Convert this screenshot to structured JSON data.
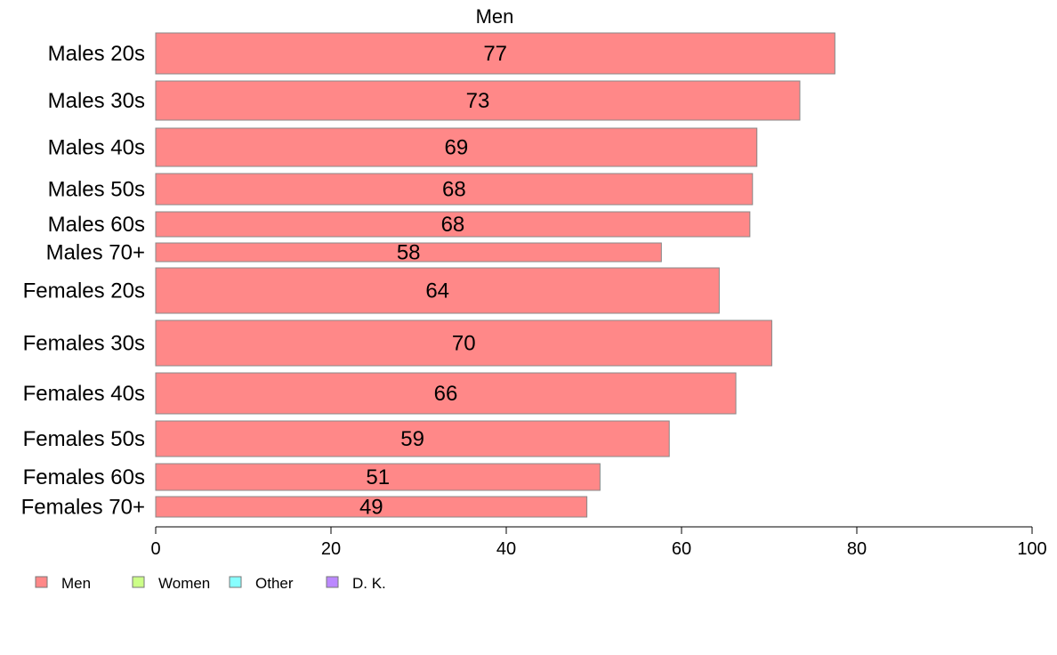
{
  "chart_data": {
    "type": "bar",
    "orientation": "horizontal",
    "title": "Men",
    "categories": [
      "Males 20s",
      "Males 30s",
      "Males 40s",
      "Males 50s",
      "Males 60s",
      "Males 70+",
      "Females 20s",
      "Females 30s",
      "Females 40s",
      "Females 50s",
      "Females 60s",
      "Females 70+"
    ],
    "series": [
      {
        "name": "Men",
        "values": [
          77,
          73,
          69,
          68,
          68,
          58,
          64,
          70,
          66,
          59,
          51,
          49
        ],
        "bar_values": [
          77.5,
          73.5,
          68.6,
          68.1,
          67.8,
          57.7,
          64.3,
          70.3,
          66.2,
          58.6,
          50.7,
          49.2
        ]
      }
    ],
    "xlim": [
      0,
      100
    ],
    "xticks": [
      "0",
      "20",
      "40",
      "60",
      "80",
      "100"
    ],
    "grid": false,
    "legend": {
      "placement": "bottom-left",
      "items": [
        {
          "label": "Men",
          "color": "#ff8888"
        },
        {
          "label": "Women",
          "color": "#ccff88"
        },
        {
          "label": "Other",
          "color": "#88ffff"
        },
        {
          "label": "D. K.",
          "color": "#bb88ff"
        }
      ]
    },
    "bar_color": "#ff8888"
  }
}
